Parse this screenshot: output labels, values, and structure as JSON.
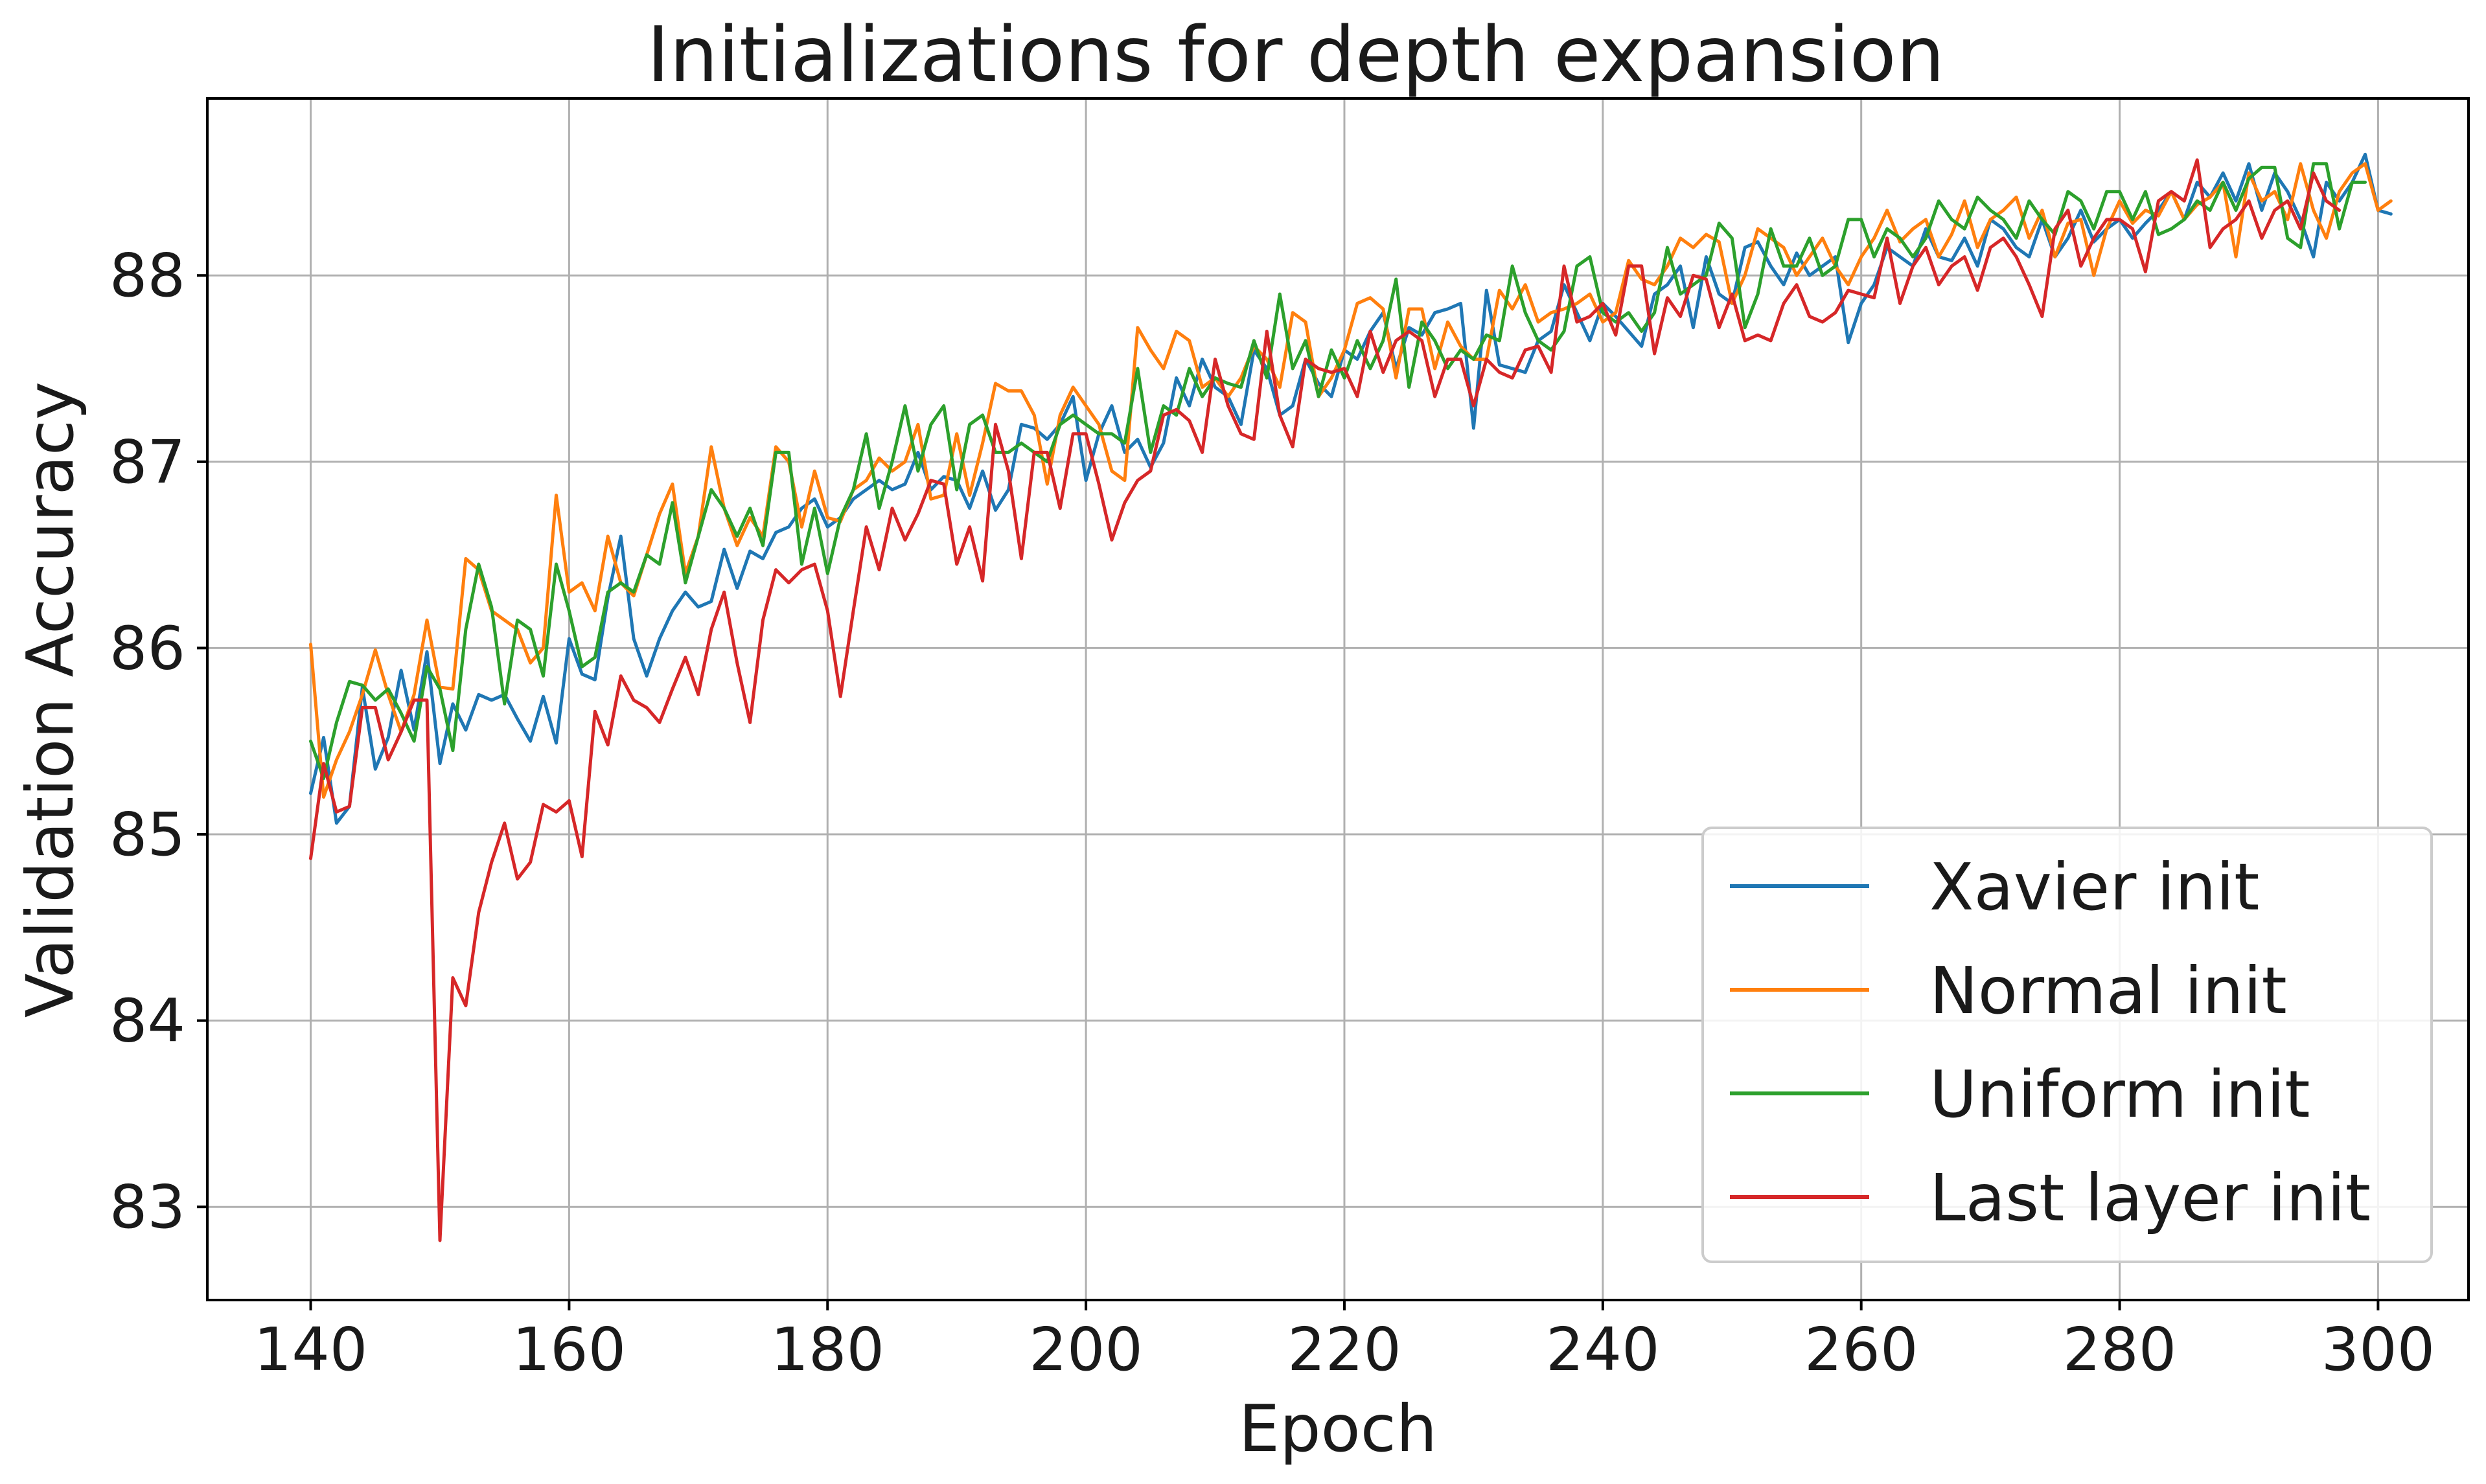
{
  "chart_data": {
    "type": "line",
    "title": "Initializations for depth expansion",
    "xlabel": "Epoch",
    "ylabel": "Validation Accuracy",
    "xlim": [
      132,
      307
    ],
    "ylim": [
      82.5,
      88.95
    ],
    "xticks": [
      140,
      160,
      180,
      200,
      220,
      240,
      260,
      280,
      300
    ],
    "yticks": [
      83,
      84,
      85,
      86,
      87,
      88
    ],
    "grid": true,
    "legend_position": "lower-right",
    "x_start": 140,
    "series": [
      {
        "name": "Xavier init",
        "color": "#1f77b4",
        "values": [
          85.22,
          85.52,
          85.06,
          85.15,
          85.79,
          85.35,
          85.52,
          85.88,
          85.56,
          85.98,
          85.38,
          85.7,
          85.56,
          85.75,
          85.72,
          85.75,
          85.62,
          85.5,
          85.74,
          85.49,
          86.05,
          85.86,
          85.83,
          86.27,
          86.6,
          86.05,
          85.85,
          86.05,
          86.2,
          86.3,
          86.22,
          86.25,
          86.53,
          86.32,
          86.52,
          86.48,
          86.62,
          86.65,
          86.75,
          86.8,
          86.65,
          86.7,
          86.8,
          86.85,
          86.9,
          86.85,
          86.88,
          87.05,
          86.85,
          86.92,
          86.9,
          86.75,
          86.95,
          86.74,
          86.85,
          87.2,
          87.18,
          87.12,
          87.2,
          87.35,
          86.9,
          87.15,
          87.3,
          87.05,
          87.12,
          86.97,
          87.1,
          87.45,
          87.3,
          87.55,
          87.4,
          87.35,
          87.2,
          87.6,
          87.5,
          87.25,
          87.3,
          87.55,
          87.42,
          87.35,
          87.6,
          87.55,
          87.7,
          87.8,
          87.5,
          87.72,
          87.68,
          87.8,
          87.82,
          87.85,
          87.18,
          87.92,
          87.52,
          87.5,
          87.48,
          87.65,
          87.7,
          87.95,
          87.8,
          87.65,
          87.85,
          87.78,
          87.7,
          87.62,
          87.9,
          87.95,
          88.05,
          87.72,
          88.1,
          87.9,
          87.85,
          88.15,
          88.18,
          88.05,
          87.95,
          88.12,
          88.0,
          88.05,
          88.1,
          87.64,
          87.85,
          87.95,
          88.15,
          88.1,
          88.05,
          88.25,
          88.1,
          88.08,
          88.2,
          88.05,
          88.3,
          88.25,
          88.15,
          88.1,
          88.3,
          88.1,
          88.2,
          88.35,
          88.18,
          88.25,
          88.3,
          88.2,
          88.28,
          88.35,
          88.45,
          88.3,
          88.5,
          88.42,
          88.55,
          88.4,
          88.6,
          88.35,
          88.55,
          88.45,
          88.3,
          88.1,
          88.5,
          88.4,
          88.5,
          88.65,
          88.35,
          88.33
        ]
      },
      {
        "name": "Normal init",
        "color": "#ff7f0e",
        "values": [
          86.02,
          85.2,
          85.4,
          85.55,
          85.75,
          85.99,
          85.75,
          85.55,
          85.75,
          86.15,
          85.79,
          85.78,
          86.48,
          86.42,
          86.2,
          86.15,
          86.1,
          85.92,
          86.0,
          86.82,
          86.3,
          86.35,
          86.2,
          86.6,
          86.35,
          86.28,
          86.5,
          86.72,
          86.88,
          86.4,
          86.6,
          87.08,
          86.75,
          86.55,
          86.7,
          86.6,
          87.08,
          87.0,
          86.65,
          86.95,
          86.7,
          86.68,
          86.85,
          86.9,
          87.02,
          86.95,
          87.0,
          87.2,
          86.8,
          86.82,
          87.15,
          86.82,
          87.1,
          87.42,
          87.38,
          87.38,
          87.25,
          86.88,
          87.25,
          87.4,
          87.3,
          87.2,
          86.95,
          86.9,
          87.72,
          87.6,
          87.5,
          87.7,
          87.65,
          87.4,
          87.45,
          87.35,
          87.45,
          87.62,
          87.55,
          87.4,
          87.8,
          87.75,
          87.35,
          87.45,
          87.6,
          87.85,
          87.88,
          87.82,
          87.45,
          87.82,
          87.82,
          87.5,
          87.75,
          87.62,
          87.55,
          87.55,
          87.92,
          87.82,
          87.95,
          87.75,
          87.8,
          87.82,
          87.85,
          87.9,
          87.75,
          87.8,
          88.08,
          87.98,
          87.95,
          88.05,
          88.2,
          88.15,
          88.22,
          88.18,
          87.85,
          88.0,
          88.25,
          88.2,
          88.15,
          88.0,
          88.1,
          88.2,
          88.05,
          87.95,
          88.1,
          88.2,
          88.35,
          88.18,
          88.25,
          88.3,
          88.1,
          88.22,
          88.4,
          88.15,
          88.3,
          88.35,
          88.42,
          88.2,
          88.35,
          88.1,
          88.28,
          88.3,
          88.0,
          88.25,
          88.4,
          88.28,
          88.35,
          88.32,
          88.45,
          88.3,
          88.38,
          88.42,
          88.5,
          88.1,
          88.55,
          88.4,
          88.45,
          88.3,
          88.6,
          88.35,
          88.2,
          88.45,
          88.55,
          88.6,
          88.35,
          88.4
        ]
      },
      {
        "name": "Uniform init",
        "color": "#2ca02c",
        "values": [
          85.5,
          85.3,
          85.6,
          85.82,
          85.8,
          85.72,
          85.78,
          85.65,
          85.5,
          85.9,
          85.78,
          85.45,
          86.1,
          86.45,
          86.22,
          85.7,
          86.15,
          86.1,
          85.85,
          86.45,
          86.2,
          85.9,
          85.95,
          86.3,
          86.35,
          86.3,
          86.5,
          86.45,
          86.78,
          86.35,
          86.6,
          86.85,
          86.75,
          86.6,
          86.75,
          86.55,
          87.05,
          87.05,
          86.45,
          86.75,
          86.4,
          86.7,
          86.85,
          87.15,
          86.75,
          87.0,
          87.3,
          86.95,
          87.2,
          87.3,
          86.85,
          87.2,
          87.25,
          87.05,
          87.05,
          87.1,
          87.05,
          87.0,
          87.2,
          87.25,
          87.2,
          87.15,
          87.15,
          87.1,
          87.5,
          87.05,
          87.3,
          87.25,
          87.5,
          87.35,
          87.45,
          87.42,
          87.4,
          87.65,
          87.45,
          87.9,
          87.5,
          87.65,
          87.35,
          87.6,
          87.45,
          87.65,
          87.5,
          87.65,
          87.98,
          87.4,
          87.75,
          87.65,
          87.5,
          87.6,
          87.55,
          87.68,
          87.65,
          88.05,
          87.8,
          87.65,
          87.6,
          87.7,
          88.05,
          88.1,
          87.8,
          87.75,
          87.8,
          87.7,
          87.8,
          88.15,
          87.9,
          87.95,
          88.0,
          88.28,
          88.2,
          87.72,
          87.9,
          88.25,
          88.05,
          88.05,
          88.2,
          88.0,
          88.05,
          88.3,
          88.3,
          88.1,
          88.25,
          88.2,
          88.1,
          88.2,
          88.4,
          88.3,
          88.25,
          88.42,
          88.35,
          88.3,
          88.2,
          88.4,
          88.3,
          88.22,
          88.45,
          88.4,
          88.25,
          88.45,
          88.45,
          88.3,
          88.45,
          88.22,
          88.25,
          88.3,
          88.4,
          88.35,
          88.5,
          88.35,
          88.52,
          88.58,
          88.58,
          88.2,
          88.15,
          88.6,
          88.6,
          88.25,
          88.5,
          88.5
        ]
      },
      {
        "name": "Last layer init",
        "color": "#d62728",
        "values": [
          84.87,
          85.38,
          85.12,
          85.15,
          85.68,
          85.68,
          85.4,
          85.55,
          85.72,
          85.72,
          82.82,
          84.23,
          84.08,
          84.58,
          84.85,
          85.06,
          84.76,
          84.85,
          85.16,
          85.12,
          85.18,
          84.88,
          85.66,
          85.48,
          85.85,
          85.72,
          85.68,
          85.6,
          85.78,
          85.95,
          85.75,
          86.1,
          86.3,
          85.92,
          85.6,
          86.15,
          86.42,
          86.35,
          86.42,
          86.45,
          86.2,
          85.74,
          86.2,
          86.65,
          86.42,
          86.75,
          86.58,
          86.72,
          86.9,
          86.88,
          86.45,
          86.65,
          86.36,
          87.2,
          86.95,
          86.48,
          87.05,
          87.05,
          86.75,
          87.15,
          87.15,
          86.88,
          86.58,
          86.78,
          86.9,
          86.95,
          87.25,
          87.28,
          87.22,
          87.05,
          87.55,
          87.3,
          87.15,
          87.12,
          87.7,
          87.25,
          87.08,
          87.55,
          87.5,
          87.48,
          87.5,
          87.35,
          87.7,
          87.48,
          87.65,
          87.7,
          87.65,
          87.35,
          87.55,
          87.55,
          87.3,
          87.55,
          87.48,
          87.45,
          87.6,
          87.62,
          87.48,
          88.05,
          87.75,
          87.78,
          87.85,
          87.68,
          88.05,
          88.05,
          87.58,
          87.88,
          87.78,
          88.0,
          87.98,
          87.72,
          87.9,
          87.65,
          87.68,
          87.65,
          87.85,
          87.95,
          87.78,
          87.75,
          87.8,
          87.92,
          87.9,
          87.88,
          88.2,
          87.85,
          88.05,
          88.15,
          87.95,
          88.05,
          88.1,
          87.92,
          88.15,
          88.2,
          88.1,
          87.95,
          87.78,
          88.25,
          88.35,
          88.05,
          88.2,
          88.3,
          88.3,
          88.25,
          88.02,
          88.4,
          88.45,
          88.4,
          88.62,
          88.15,
          88.25,
          88.3,
          88.4,
          88.2,
          88.35,
          88.4,
          88.25,
          88.55,
          88.4,
          88.35
        ]
      }
    ]
  }
}
